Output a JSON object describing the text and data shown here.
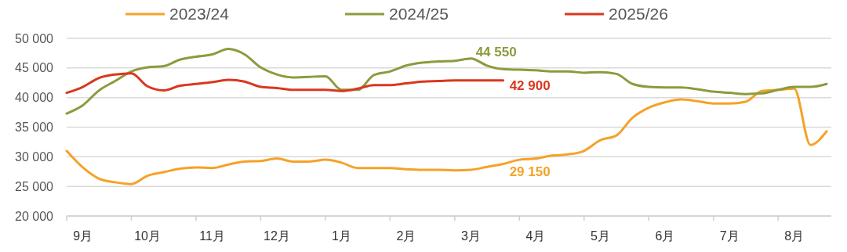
{
  "chart_data": {
    "type": "line",
    "legend": "top",
    "grid": "y",
    "line_style": "solid",
    "marker": "none",
    "categories": [
      null,
      "9月",
      null,
      null,
      null,
      "10月",
      null,
      null,
      null,
      "11月",
      null,
      null,
      null,
      "12月",
      null,
      null,
      null,
      "1月",
      null,
      null,
      null,
      "2月",
      null,
      null,
      null,
      "3月",
      null,
      null,
      null,
      "4月",
      null,
      null,
      null,
      "5月",
      null,
      null,
      null,
      "6月",
      null,
      null,
      null,
      "7月",
      null,
      null,
      null,
      "8月",
      null,
      null
    ],
    "ylim": [
      20000,
      50000
    ],
    "yticks": [
      {
        "value": 20000,
        "label": "20 000"
      },
      {
        "value": 25000,
        "label": "25 000"
      },
      {
        "value": 30000,
        "label": "30 000"
      },
      {
        "value": 35000,
        "label": "35 000"
      },
      {
        "value": 40000,
        "label": "40 000"
      },
      {
        "value": 45000,
        "label": "45 000"
      },
      {
        "value": 50000,
        "label": "50 000"
      }
    ],
    "annotations": [
      "44 550",
      "42 900",
      "29 150"
    ],
    "series": [
      {
        "name": "2023/24",
        "color": "#f5a227",
        "values": [
          31000,
          28200,
          26300,
          25700,
          25400,
          26800,
          27400,
          28000,
          28200,
          28100,
          28700,
          29200,
          29300,
          29700,
          29200,
          29200,
          29500,
          29000,
          28100,
          28100,
          28100,
          27900,
          27800,
          27800,
          27700,
          27800,
          28300,
          28800,
          29500,
          29700,
          30200,
          30400,
          31000,
          32800,
          33600,
          36600,
          38300,
          39200,
          39700,
          39400,
          39000,
          39000,
          39300,
          41100,
          41300,
          41500,
          32000,
          34300
        ]
      },
      {
        "name": "2024/25",
        "color": "#8b9b3d",
        "values": [
          37300,
          38700,
          41200,
          42800,
          44400,
          45100,
          45300,
          46400,
          46900,
          47300,
          48200,
          47300,
          45100,
          43900,
          43400,
          43500,
          43600,
          41300,
          41300,
          43800,
          44400,
          45400,
          45900,
          46100,
          46200,
          46600,
          45400,
          44800,
          44700,
          44600,
          44400,
          44400,
          44200,
          44300,
          44000,
          42300,
          41800,
          41700,
          41700,
          41400,
          41000,
          40800,
          40600,
          40700,
          41300,
          41800,
          41800,
          42300
        ]
      },
      {
        "name": "2025/26",
        "color": "#d9381e",
        "values": [
          40800,
          41800,
          43300,
          43900,
          44100,
          41900,
          41200,
          42000,
          42300,
          42600,
          43000,
          42700,
          41800,
          41600,
          41300,
          41300,
          41300,
          41100,
          41500,
          42100,
          42100,
          42400,
          42700,
          42800,
          42900,
          42900,
          42900,
          42900,
          null,
          null,
          null,
          null,
          null,
          null,
          null,
          null,
          null,
          null,
          null,
          null,
          null,
          null,
          null,
          null,
          null,
          null,
          null,
          null
        ]
      }
    ]
  }
}
